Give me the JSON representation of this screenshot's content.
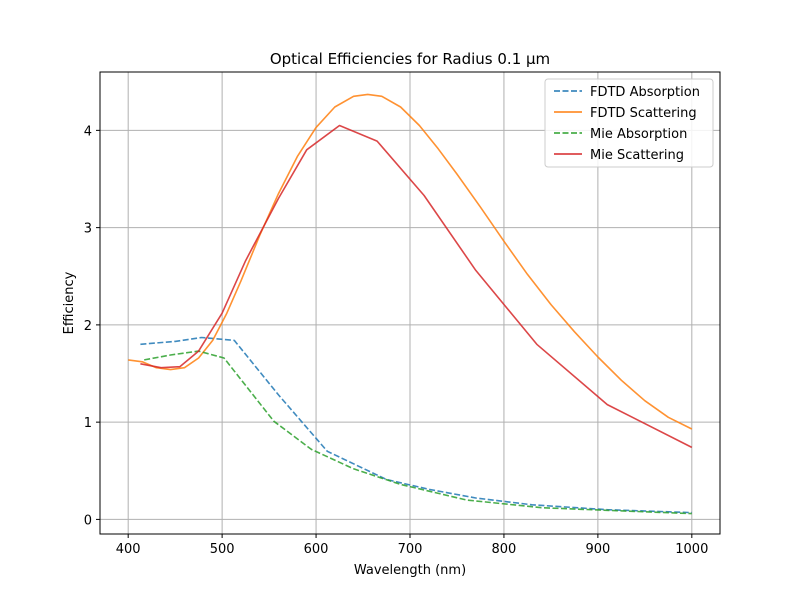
{
  "chart_data": {
    "type": "line",
    "title": "Optical Efficiencies for Radius 0.1 µm",
    "xlabel": "Wavelength (nm)",
    "ylabel": "Efficiency",
    "xlim": [
      370,
      1030
    ],
    "ylim": [
      -0.15,
      4.6
    ],
    "xticks": [
      400,
      500,
      600,
      700,
      800,
      900,
      1000
    ],
    "yticks": [
      0,
      1,
      2,
      3,
      4
    ],
    "grid": true,
    "legend_position": "top-right",
    "series": [
      {
        "name": "FDTD Absorption",
        "color": "#1f77b4",
        "dash": "dashed",
        "x": [
          413,
          450,
          478,
          513,
          560,
          612,
          675,
          720,
          770,
          830,
          910,
          1000
        ],
        "y": [
          1.8,
          1.83,
          1.87,
          1.84,
          1.28,
          0.7,
          0.41,
          0.31,
          0.22,
          0.15,
          0.1,
          0.07
        ]
      },
      {
        "name": "FDTD Scattering",
        "color": "#ff7f0e",
        "dash": "solid",
        "x": [
          400,
          415,
          430,
          445,
          460,
          475,
          490,
          505,
          520,
          540,
          560,
          580,
          600,
          620,
          640,
          655,
          670,
          690,
          710,
          730,
          750,
          775,
          800,
          825,
          850,
          875,
          900,
          925,
          950,
          975,
          1000
        ],
        "y": [
          1.64,
          1.62,
          1.56,
          1.54,
          1.56,
          1.66,
          1.84,
          2.12,
          2.45,
          2.92,
          3.35,
          3.73,
          4.03,
          4.24,
          4.35,
          4.37,
          4.35,
          4.24,
          4.05,
          3.81,
          3.55,
          3.21,
          2.86,
          2.52,
          2.21,
          1.93,
          1.67,
          1.43,
          1.22,
          1.05,
          0.93
        ]
      },
      {
        "name": "Mie Absorption",
        "color": "#2ca02c",
        "dash": "dashed",
        "x": [
          417,
          445,
          475,
          502,
          555,
          595,
          640,
          690,
          760,
          840,
          920,
          1000
        ],
        "y": [
          1.64,
          1.69,
          1.73,
          1.66,
          1.01,
          0.72,
          0.52,
          0.36,
          0.2,
          0.12,
          0.09,
          0.06
        ]
      },
      {
        "name": "Mie Scattering",
        "color": "#d62728",
        "dash": "solid",
        "x": [
          413,
          435,
          455,
          475,
          500,
          525,
          560,
          590,
          625,
          665,
          715,
          770,
          835,
          910,
          1000
        ],
        "y": [
          1.6,
          1.56,
          1.57,
          1.73,
          2.12,
          2.66,
          3.3,
          3.8,
          4.05,
          3.89,
          3.33,
          2.56,
          1.8,
          1.18,
          0.74
        ]
      }
    ]
  }
}
